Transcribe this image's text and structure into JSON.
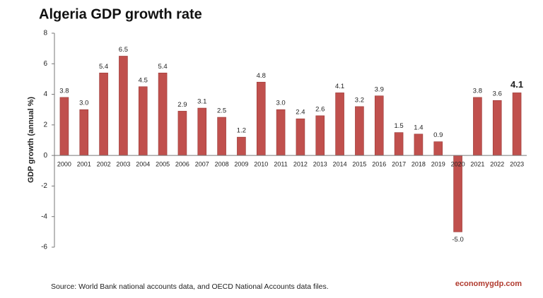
{
  "chart_data": {
    "type": "bar",
    "title": "Algeria GDP growth rate",
    "y_label": "GDP growth (annual %)",
    "categories": [
      "2000",
      "2001",
      "2002",
      "2003",
      "2004",
      "2005",
      "2006",
      "2007",
      "2008",
      "2009",
      "2010",
      "2011",
      "2012",
      "2013",
      "2014",
      "2015",
      "2016",
      "2017",
      "2018",
      "2019",
      "2020",
      "2021",
      "2022",
      "2023"
    ],
    "values": [
      3.8,
      3,
      5.4,
      6.5,
      4.5,
      5.4,
      2.9,
      3.1,
      2.5,
      1.2,
      4.8,
      3,
      2.4,
      2.6,
      4.1,
      3.2,
      3.9,
      1.5,
      1.4,
      0.9,
      -5,
      3.8,
      3.6,
      4.1
    ],
    "value_labels": [
      "3.8",
      "3.0",
      "5.4",
      "6.5",
      "4.5",
      "5.4",
      "2.9",
      "3.1",
      "2.5",
      "1.2",
      "4.8",
      "3.0",
      "2.4",
      "2.6",
      "4.1",
      "3.2",
      "3.9",
      "1.5",
      "1.4",
      "0.9",
      "-5.0",
      "3.8",
      "3.6",
      "4.1"
    ],
    "color": "#c0504d",
    "ylim": [
      -6,
      8
    ],
    "yticks": [
      -6,
      -4,
      -2,
      0,
      2,
      4,
      6,
      8
    ],
    "grid": false,
    "source": "Source:  World Bank national accounts data, and OECD National Accounts data files.",
    "brand": "economygdp.com"
  }
}
